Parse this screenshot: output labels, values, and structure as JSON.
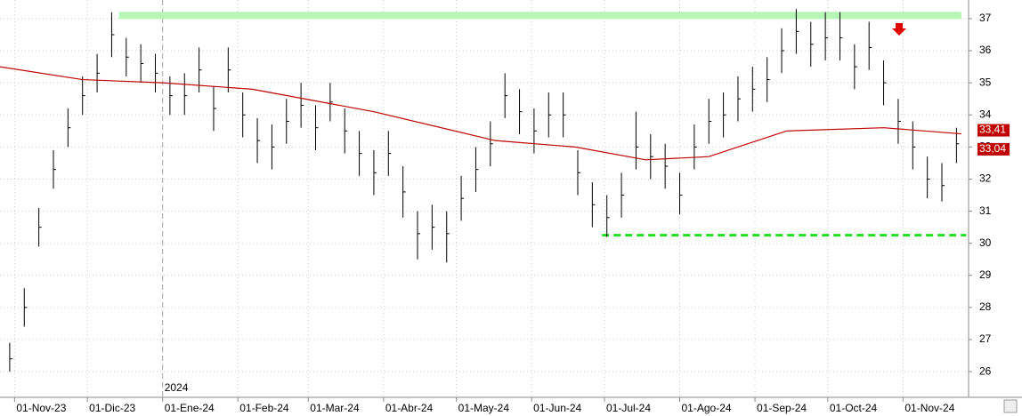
{
  "chart_data": {
    "type": "ohlc",
    "x": [
      0,
      6,
      12,
      18,
      24,
      30,
      36,
      42,
      48,
      54,
      60,
      66,
      72,
      78,
      84,
      90,
      96,
      102,
      108,
      114,
      120,
      126,
      132,
      138,
      144,
      150,
      156,
      162,
      168,
      174,
      180,
      186,
      192,
      198,
      204,
      210,
      216,
      222,
      228,
      234,
      240,
      246,
      252,
      258,
      264,
      270,
      276,
      282,
      288,
      294,
      300,
      306,
      312,
      318,
      324,
      330,
      336,
      342,
      348,
      354,
      360,
      366,
      372,
      378,
      384,
      390
    ],
    "high": [
      26.9,
      28.6,
      31.1,
      32.9,
      34.2,
      35.2,
      35.9,
      37.2,
      36.4,
      36.2,
      35.9,
      35.2,
      35.3,
      36.1,
      34.9,
      36.1,
      34.7,
      33.9,
      33.7,
      34.5,
      35,
      34.3,
      35,
      34.2,
      33.5,
      32.9,
      33.5,
      32.4,
      31,
      31.2,
      31,
      32.1,
      33,
      33.8,
      35.3,
      34.8,
      34.2,
      34.7,
      34.7,
      32.9,
      31.9,
      31.5,
      32.2,
      34.1,
      33.4,
      33.1,
      32.2,
      33.7,
      34.5,
      34.7,
      35.2,
      35.5,
      35.8,
      36.7,
      37.3,
      36.9,
      37.2,
      37.2,
      36.2,
      36.9,
      35.7,
      34.5,
      33.8,
      32.7,
      32.5,
      33.6
    ],
    "low": [
      26,
      27.4,
      29.9,
      31.7,
      33,
      34,
      34.7,
      35.8,
      35.2,
      35,
      34.7,
      34,
      34,
      34.7,
      33.5,
      34.7,
      33.3,
      32.5,
      32.3,
      33.1,
      33.6,
      32.9,
      33.8,
      32.8,
      32.1,
      31.5,
      32.1,
      30.8,
      29.5,
      29.8,
      29.4,
      30.7,
      31.6,
      32.4,
      33.9,
      33.4,
      32.8,
      33.3,
      33.3,
      31.5,
      30.5,
      30.2,
      30.8,
      32.3,
      32,
      31.7,
      30.9,
      32.3,
      33.1,
      33.3,
      33.8,
      34.1,
      34.4,
      35.3,
      35.9,
      35.5,
      35.7,
      35.7,
      34.8,
      35.4,
      34.3,
      33.1,
      32.3,
      31.4,
      31.3,
      32.5
    ],
    "close": [
      26.4,
      28,
      30.5,
      32.3,
      33.6,
      34.6,
      35.3,
      36.5,
      35.8,
      35.6,
      35.3,
      34.6,
      34.6,
      35.4,
      34.2,
      35.4,
      34,
      33.2,
      33,
      33.8,
      34.3,
      33.6,
      34.4,
      33.5,
      32.8,
      32.2,
      32.8,
      31.6,
      30.3,
      30.5,
      30.3,
      31.4,
      32.3,
      33.1,
      34.6,
      34.1,
      33.5,
      34,
      34,
      32.2,
      31.2,
      30.8,
      31.5,
      33,
      32.7,
      32.4,
      31.5,
      33,
      33.8,
      34,
      34.5,
      34.8,
      35.1,
      36,
      36.6,
      36.2,
      36.4,
      36.4,
      35.5,
      36.1,
      35,
      33.8,
      33,
      32,
      31.8,
      33.1
    ],
    "bar_color": "#000000",
    "ma": {
      "x": [
        -4,
        30,
        63,
        100,
        150,
        200,
        233,
        262,
        288,
        320,
        360,
        392
      ],
      "values": [
        35.5,
        35.1,
        35.0,
        34.8,
        34.1,
        33.2,
        33.0,
        32.6,
        32.7,
        33.5,
        33.6,
        33.41
      ],
      "color": "#c00000"
    },
    "last_labels": [
      {
        "value": 33.41,
        "label": "33,41"
      },
      {
        "value": 33.04,
        "label": "33,04"
      }
    ],
    "resistance": {
      "value": 37.1,
      "x": [
        45,
        392
      ],
      "color": "#b6f5b6"
    },
    "support": {
      "value": 30.25,
      "x": [
        244,
        394
      ],
      "color": "#22dd22"
    },
    "year_divider": {
      "x": 63,
      "label": "2024"
    },
    "xlim": [
      -4,
      395
    ],
    "xticks": [
      {
        "value": 2,
        "label": "01-Nov-23"
      },
      {
        "value": 32,
        "label": "01-Dic-23"
      },
      {
        "value": 63,
        "label": "01-Ene-24"
      },
      {
        "value": 94,
        "label": "01-Feb-24"
      },
      {
        "value": 123,
        "label": "01-Mar-24"
      },
      {
        "value": 154,
        "label": "01-Abr-24"
      },
      {
        "value": 184,
        "label": "01-May-24"
      },
      {
        "value": 215,
        "label": "01-Jun-24"
      },
      {
        "value": 245,
        "label": "01-Jul-24"
      },
      {
        "value": 276,
        "label": "01-Ago-24"
      },
      {
        "value": 307,
        "label": "01-Sep-24"
      },
      {
        "value": 337,
        "label": "01-Oct-24"
      },
      {
        "value": 368,
        "label": "01-Nov-24"
      }
    ],
    "ylim": [
      25.2,
      37.58
    ],
    "yticks": [
      26,
      27,
      28,
      29,
      30,
      31,
      32,
      33,
      34,
      35,
      36,
      37
    ],
    "grid": true
  }
}
